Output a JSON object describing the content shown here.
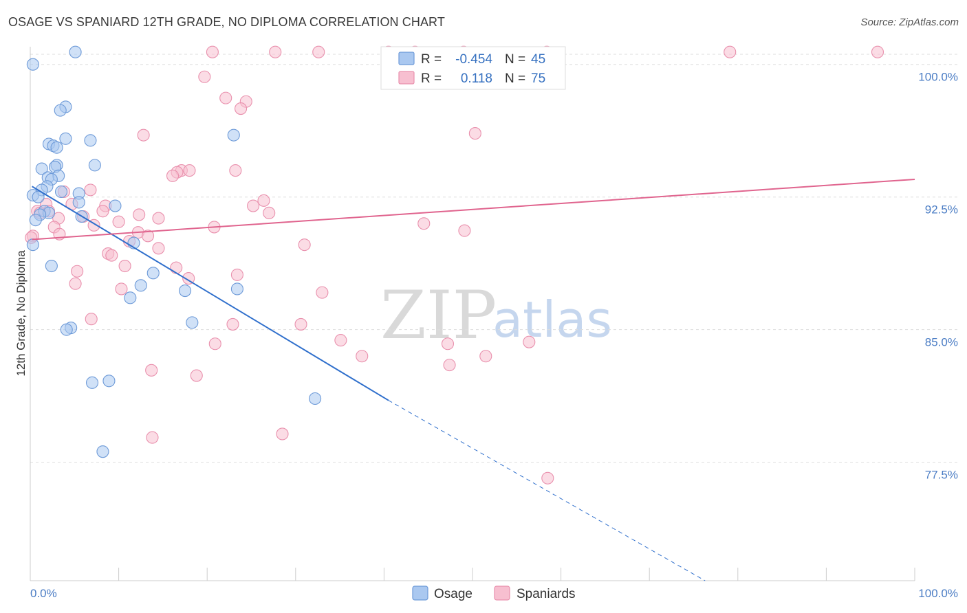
{
  "header": {
    "title": "OSAGE VS SPANIARD 12TH GRADE, NO DIPLOMA CORRELATION CHART",
    "source": "Source: ZipAtlas.com"
  },
  "colors": {
    "osage_fill": "#aac8f0",
    "osage_stroke": "#6d9ad8",
    "osage_line": "#2f6fcc",
    "spaniards_fill": "#f7bfd0",
    "spaniards_stroke": "#e990ad",
    "spaniards_line": "#e0648e",
    "grid": "#dddddd",
    "tick_label": "#4a7cc4"
  },
  "legend": {
    "rows": [
      {
        "r_label": "R =",
        "r_value": "-0.454",
        "n_label": "N =",
        "n_value": "45"
      },
      {
        "r_label": "R =",
        "r_value": "0.118",
        "n_label": "N =",
        "n_value": "75"
      }
    ]
  },
  "watermark": {
    "zip": "ZIP",
    "atlas": "atlas"
  },
  "chart_data": {
    "type": "scatter",
    "title": "OSAGE VS SPANIARD 12TH GRADE, NO DIPLOMA CORRELATION CHART",
    "xlabel": "",
    "ylabel": "12th Grade, No Diploma",
    "xlim": [
      0,
      100
    ],
    "ylim": [
      70.8,
      101.0
    ],
    "x_tick_labels": [
      {
        "value": 0,
        "label": "0.0%"
      },
      {
        "value": 100,
        "label": "100.0%"
      }
    ],
    "y_tick_labels": [
      {
        "value": 100.0,
        "label": "100.0%"
      },
      {
        "value": 92.5,
        "label": "92.5%"
      },
      {
        "value": 85.0,
        "label": "85.0%"
      },
      {
        "value": 77.5,
        "label": "77.5%"
      }
    ],
    "legend_position": "top-center",
    "series": [
      {
        "name": "Osage",
        "R": -0.454,
        "N": 45,
        "trend": {
          "x0": 0.2,
          "y0": 93.1,
          "x1": 40.5,
          "y1": 81.0,
          "dash_x1": 76.3,
          "dash_y1": 70.8
        },
        "points": [
          [
            5.1,
            100.7
          ],
          [
            4.0,
            97.6
          ],
          [
            3.4,
            97.4
          ],
          [
            4.0,
            95.8
          ],
          [
            6.8,
            95.7
          ],
          [
            2.1,
            95.5
          ],
          [
            2.6,
            95.4
          ],
          [
            3.0,
            95.3
          ],
          [
            23.0,
            96.0
          ],
          [
            7.3,
            94.3
          ],
          [
            3.0,
            94.3
          ],
          [
            2.8,
            94.2
          ],
          [
            1.3,
            94.1
          ],
          [
            3.2,
            93.7
          ],
          [
            2.0,
            93.6
          ],
          [
            2.4,
            93.5
          ],
          [
            1.9,
            93.1
          ],
          [
            1.3,
            92.9
          ],
          [
            0.3,
            92.6
          ],
          [
            0.9,
            92.5
          ],
          [
            3.5,
            92.8
          ],
          [
            5.5,
            92.7
          ],
          [
            5.5,
            92.2
          ],
          [
            9.6,
            92.0
          ],
          [
            1.6,
            91.7
          ],
          [
            2.1,
            91.6
          ],
          [
            1.1,
            91.5
          ],
          [
            5.8,
            91.4
          ],
          [
            0.6,
            91.2
          ],
          [
            11.7,
            89.9
          ],
          [
            0.3,
            89.8
          ],
          [
            2.4,
            88.6
          ],
          [
            13.9,
            88.2
          ],
          [
            12.5,
            87.5
          ],
          [
            17.5,
            87.2
          ],
          [
            23.4,
            87.3
          ],
          [
            11.3,
            86.8
          ],
          [
            18.3,
            85.4
          ],
          [
            4.6,
            85.1
          ],
          [
            4.1,
            85.0
          ],
          [
            8.9,
            82.1
          ],
          [
            7.0,
            82.0
          ],
          [
            32.2,
            81.1
          ],
          [
            8.2,
            78.1
          ],
          [
            0.3,
            100.0
          ]
        ]
      },
      {
        "name": "Spaniards",
        "R": 0.118,
        "N": 75,
        "trend": {
          "x0": 0.2,
          "y0": 90.1,
          "x1": 100,
          "y1": 93.5
        },
        "points": [
          [
            20.6,
            100.7
          ],
          [
            27.7,
            100.7
          ],
          [
            32.6,
            100.7
          ],
          [
            40.5,
            100.7
          ],
          [
            43.5,
            100.7
          ],
          [
            49.0,
            100.7
          ],
          [
            58.4,
            100.7
          ],
          [
            79.1,
            100.7
          ],
          [
            95.8,
            100.7
          ],
          [
            19.7,
            99.3
          ],
          [
            22.1,
            98.1
          ],
          [
            24.4,
            97.9
          ],
          [
            23.8,
            97.5
          ],
          [
            12.8,
            96.0
          ],
          [
            50.3,
            96.1
          ],
          [
            17.1,
            94.0
          ],
          [
            18.0,
            94.0
          ],
          [
            16.6,
            93.9
          ],
          [
            23.2,
            94.0
          ],
          [
            16.1,
            93.7
          ],
          [
            6.8,
            92.9
          ],
          [
            3.8,
            92.8
          ],
          [
            26.4,
            92.3
          ],
          [
            25.2,
            92.0
          ],
          [
            1.8,
            92.1
          ],
          [
            8.5,
            92.0
          ],
          [
            4.7,
            92.1
          ],
          [
            8.2,
            91.7
          ],
          [
            27.0,
            91.6
          ],
          [
            12.3,
            91.5
          ],
          [
            14.5,
            91.3
          ],
          [
            3.2,
            91.3
          ],
          [
            6.0,
            91.4
          ],
          [
            0.8,
            91.7
          ],
          [
            2.1,
            91.7
          ],
          [
            10.0,
            91.1
          ],
          [
            44.5,
            91.0
          ],
          [
            2.7,
            90.8
          ],
          [
            7.2,
            90.9
          ],
          [
            20.8,
            90.8
          ],
          [
            49.1,
            90.6
          ],
          [
            12.2,
            90.5
          ],
          [
            3.3,
            90.4
          ],
          [
            13.3,
            90.3
          ],
          [
            11.2,
            90.0
          ],
          [
            0.3,
            90.3
          ],
          [
            31.0,
            89.8
          ],
          [
            14.5,
            89.6
          ],
          [
            8.8,
            89.3
          ],
          [
            9.2,
            89.2
          ],
          [
            10.7,
            88.6
          ],
          [
            16.5,
            88.5
          ],
          [
            5.3,
            88.3
          ],
          [
            23.4,
            88.1
          ],
          [
            17.9,
            87.9
          ],
          [
            5.1,
            87.6
          ],
          [
            10.3,
            87.3
          ],
          [
            33.0,
            87.1
          ],
          [
            6.9,
            85.6
          ],
          [
            22.9,
            85.3
          ],
          [
            30.6,
            85.3
          ],
          [
            35.1,
            84.4
          ],
          [
            56.4,
            84.3
          ],
          [
            20.9,
            84.2
          ],
          [
            47.2,
            84.2
          ],
          [
            37.5,
            83.5
          ],
          [
            51.5,
            83.5
          ],
          [
            47.4,
            83.0
          ],
          [
            13.7,
            82.7
          ],
          [
            18.8,
            82.4
          ],
          [
            28.5,
            79.1
          ],
          [
            13.8,
            78.9
          ],
          [
            58.5,
            76.6
          ],
          [
            0.1,
            90.2
          ],
          [
            1.1,
            91.6
          ]
        ]
      }
    ]
  },
  "bottom_legend": {
    "items": [
      {
        "label": "Osage"
      },
      {
        "label": "Spaniards"
      }
    ]
  }
}
